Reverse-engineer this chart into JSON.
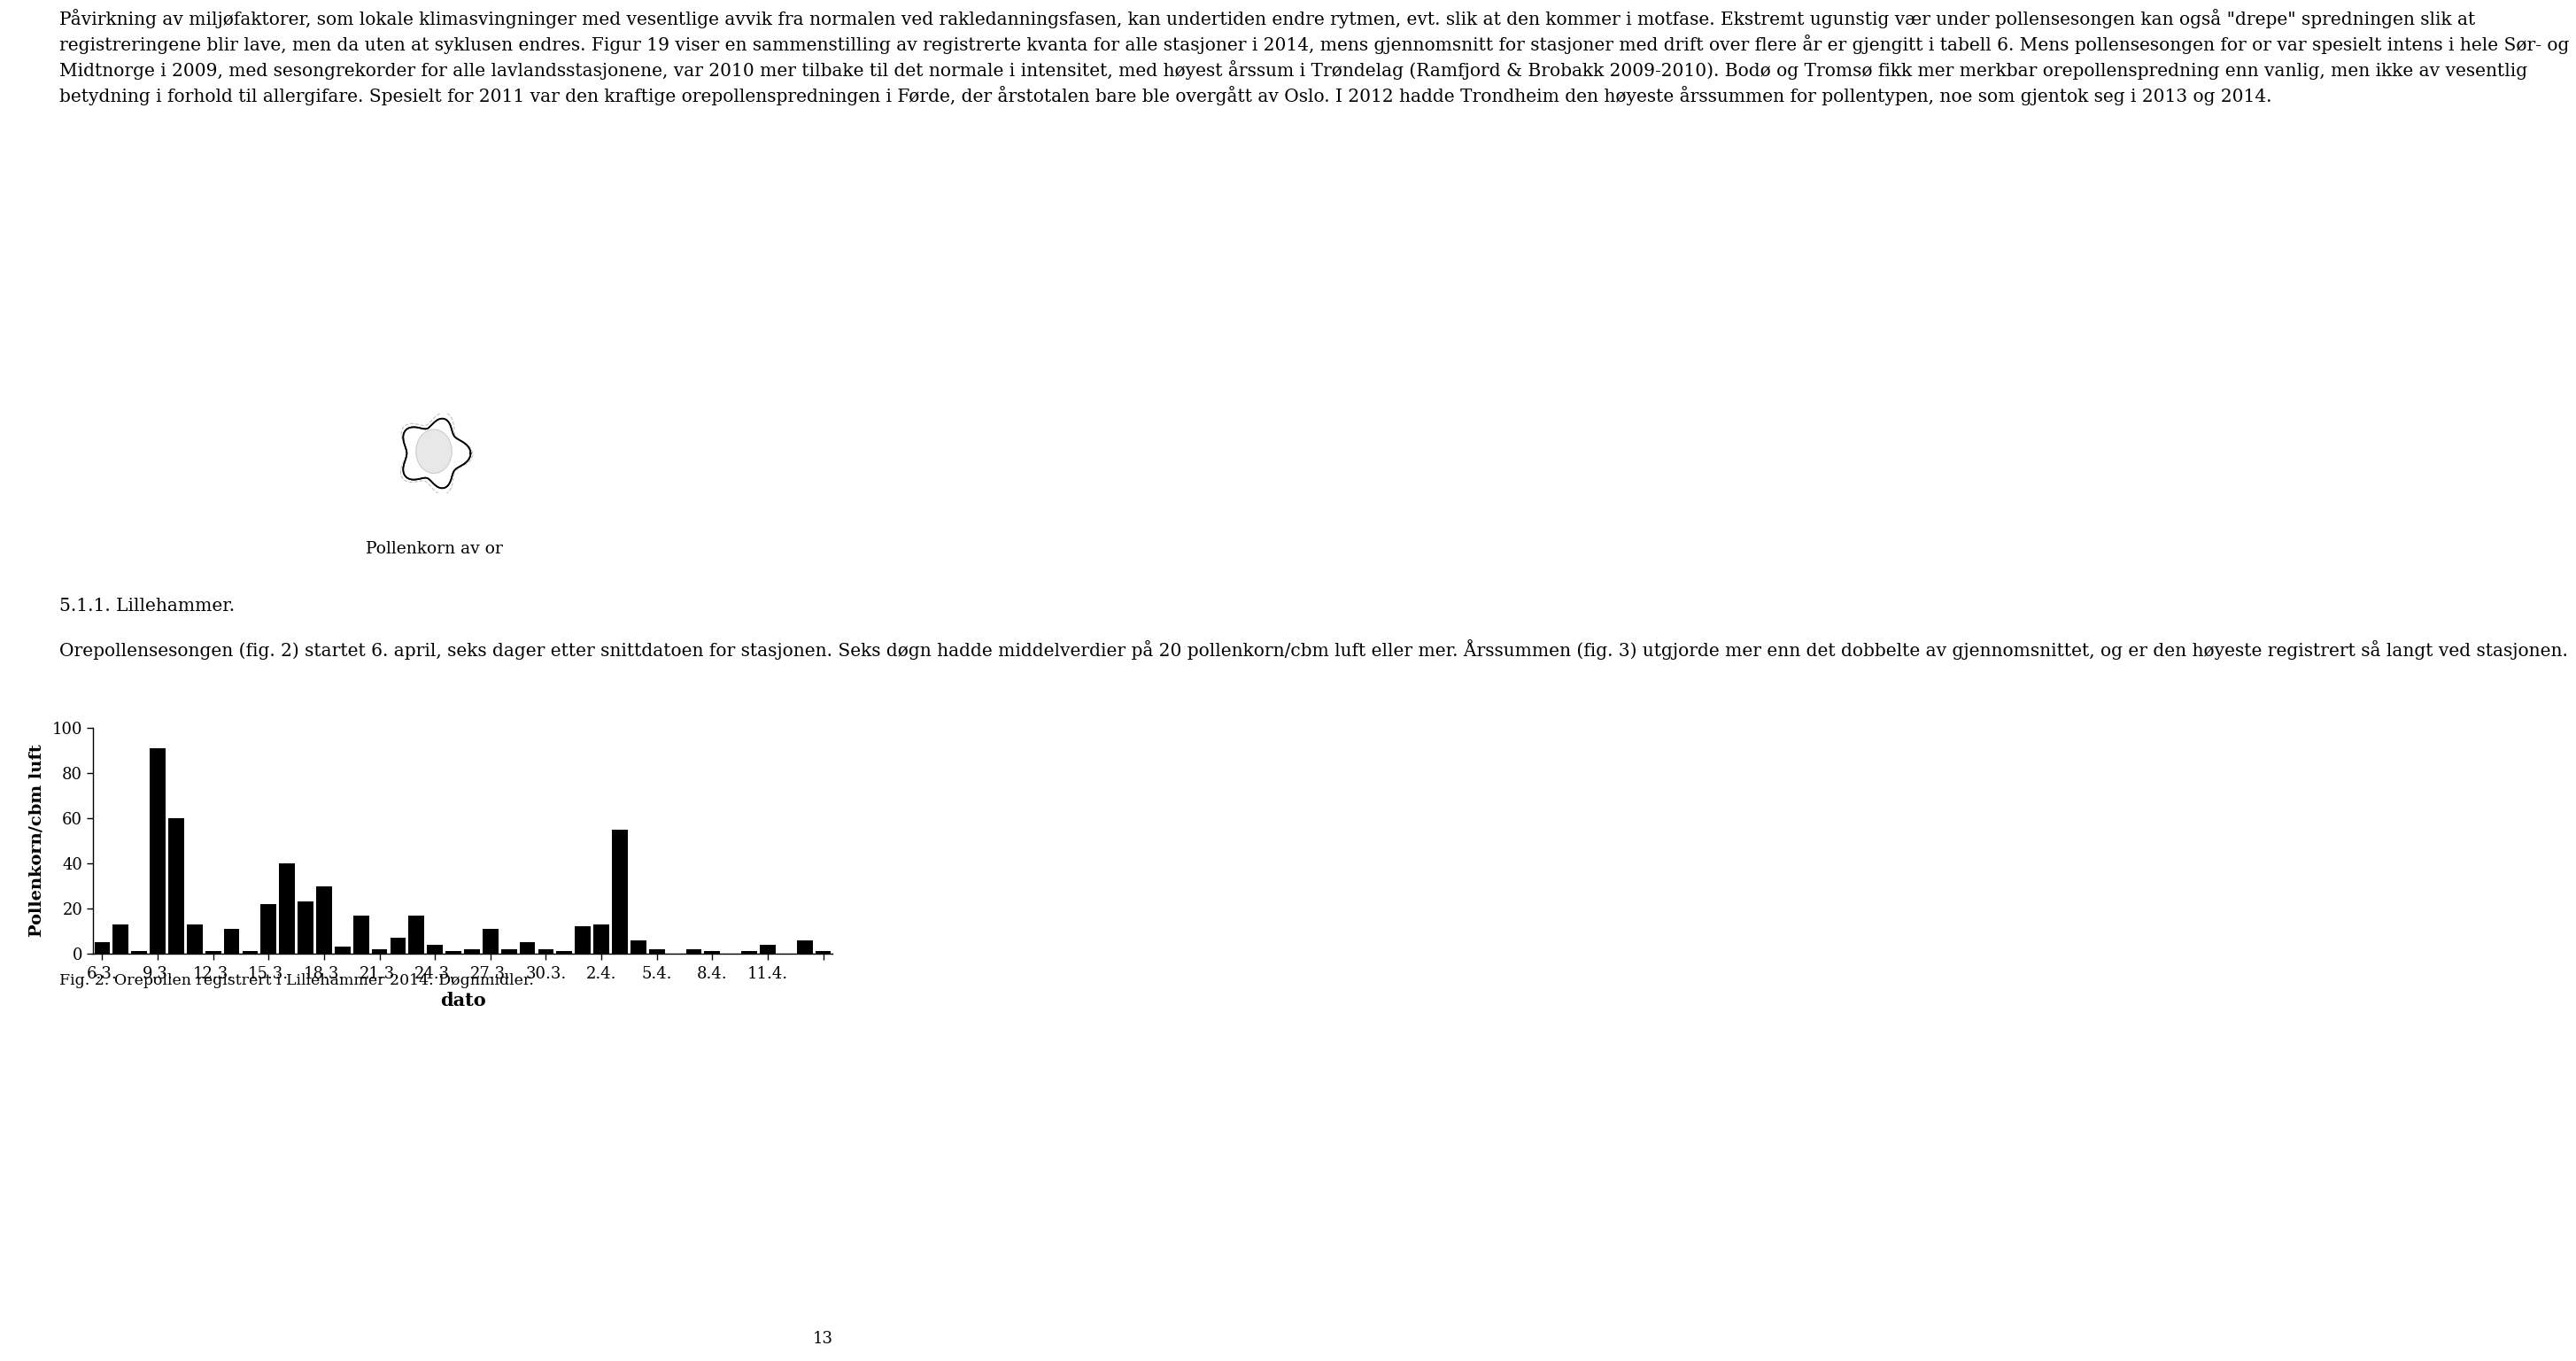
{
  "paragraph": "Påvirkning av miljøfaktorer, som lokale klimasvingninger med vesentlige avvik fra normalen ved rakledanningsfasen, kan undertiden endre rytmen, evt. slik at den kommer i motfase. Ekstremt ugunstig vær under pollensesongen kan også \"drepe\" spredningen slik at registreringene blir lave, men da uten at syklusen endres. Figur 19 viser en sammenstilling av registrerte kvanta for alle stasjoner i 2014, mens gjennomsnitt for stasjoner med drift over flere år er gjengitt i tabell 6. Mens pollensesongen for or var spesielt intens i hele Sør- og Midtnorge i 2009, med sesongrekorder for alle lavlandsstasjonene, var 2010 mer tilbake til det normale i intensitet, med høyest årssum i Trøndelag (Ramfjord & Brobakk 2009-2010). Bodø og Tromsø fikk mer merkbar orepollenspredning enn vanlig, men ikke av vesentlig betydning i forhold til allergifare. Spesielt for 2011 var den kraftige orepollenspredningen i Førde, der årstotalen bare ble overgått av Oslo. I 2012 hadde Trondheim den høyeste årssummen for pollentypen, noe som gjentok seg i 2013 og 2014.",
  "pollen_label": "Pollenkorn av or",
  "section_label": "5.1.1. Lillehammer.",
  "intro_text": "Orepollensesongen (fig. 2) startet 6. april, seks dager etter snittdatoen for stasjonen. Seks døgn hadde middelverdier på 20 pollenkorn/cbm luft eller mer. Årssummen (fig. 3) utgjorde mer enn det dobbelte av gjennomsnittet, og er den høyeste registrert så langt ved stasjonen.",
  "fig_caption": "Fig. 2. Orepollen registrert i Lillehammer 2014. Døgnmidler.",
  "page_number": "13",
  "bar_values": [
    5,
    13,
    1,
    91,
    60,
    13,
    1,
    11,
    1,
    22,
    40,
    23,
    30,
    3,
    17,
    2,
    7,
    17,
    4,
    1,
    2,
    11,
    2,
    5,
    2,
    1,
    12,
    13,
    55,
    6,
    2,
    0,
    2,
    1,
    0,
    1,
    4,
    0,
    6,
    1
  ],
  "tick_positions": [
    0,
    3,
    6,
    9,
    12,
    15,
    18,
    21,
    24,
    27,
    30,
    33,
    36,
    39
  ],
  "tick_labels": [
    "6.3.",
    "9.3.",
    "12.3.",
    "15.3.",
    "18.3.",
    "21.3.",
    "24.3.",
    "27.3.",
    "30.3.",
    "2.4.",
    "5.4.",
    "8.4.",
    "11.4.",
    ""
  ],
  "ylabel": "Pollenkorn/cbm luft",
  "xlabel": "dato",
  "ylim": [
    0,
    100
  ],
  "yticks": [
    0,
    20,
    40,
    60,
    80,
    100
  ],
  "bar_color": "#000000",
  "background_color": "#ffffff",
  "text_font_size": 14.5,
  "chart_tick_size": 13,
  "chart_label_size": 14
}
